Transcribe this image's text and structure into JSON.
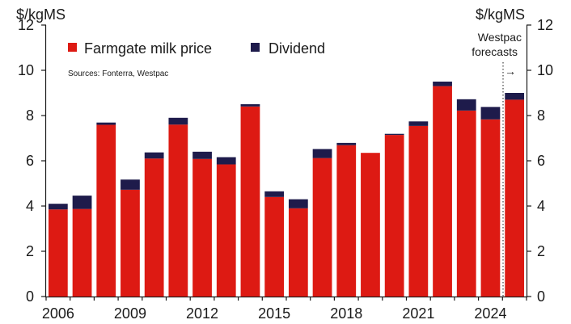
{
  "chart_data": {
    "type": "bar",
    "stacked": true,
    "y_unit_left": "$/kgMS",
    "y_unit_right": "$/kgMS",
    "ylim": [
      0,
      12
    ],
    "yticks": [
      0,
      2,
      4,
      6,
      8,
      10,
      12
    ],
    "xlim": [
      2006,
      2025
    ],
    "xticks": [
      2006,
      2009,
      2012,
      2015,
      2018,
      2021,
      2024
    ],
    "x": [
      2006,
      2007,
      2008,
      2009,
      2010,
      2011,
      2012,
      2013,
      2014,
      2015,
      2016,
      2017,
      2018,
      2019,
      2020,
      2021,
      2022,
      2023,
      2024,
      2025
    ],
    "series": [
      {
        "name": "Farmgate milk price",
        "color": "#dd1a13",
        "values": [
          3.85,
          3.87,
          7.59,
          4.72,
          6.1,
          7.6,
          6.08,
          5.84,
          8.4,
          4.4,
          3.9,
          6.12,
          6.69,
          6.35,
          7.14,
          7.54,
          9.3,
          8.22,
          7.83,
          8.7
        ]
      },
      {
        "name": "Dividend",
        "color": "#1e1b4b",
        "values": [
          0.25,
          0.59,
          0.1,
          0.45,
          0.27,
          0.3,
          0.32,
          0.32,
          0.1,
          0.25,
          0.4,
          0.4,
          0.1,
          0,
          0.05,
          0.2,
          0.2,
          0.5,
          0.55,
          0.3
        ]
      }
    ],
    "legend": {
      "position": "top-left",
      "items": [
        "Farmgate milk price",
        "Dividend"
      ]
    },
    "annotations": {
      "source": "Sources: Fonterra, Westpac",
      "forecast_line1": "Westpac",
      "forecast_line2": "forecasts",
      "forecast_arrow": "→"
    },
    "grid": false
  }
}
